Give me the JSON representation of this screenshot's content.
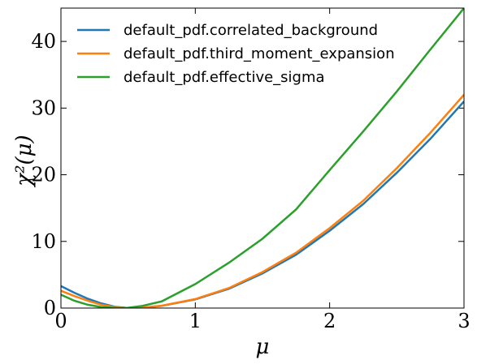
{
  "chart_data": {
    "type": "line",
    "xlabel": "μ",
    "ylabel": "χ²(μ)",
    "x": [
      0,
      0.1,
      0.2,
      0.3,
      0.4,
      0.5,
      0.6,
      0.75,
      1,
      1.25,
      1.5,
      1.75,
      2,
      2.25,
      2.5,
      2.75,
      3
    ],
    "series": [
      {
        "name": "default_pdf.correlated_background",
        "color": "#1f77b4",
        "values": [
          3.3,
          2.3,
          1.4,
          0.7,
          0.2,
          0,
          0.05,
          0.33,
          1.3,
          2.9,
          5.2,
          8.0,
          11.6,
          15.6,
          20.3,
          25.4,
          31
        ]
      },
      {
        "name": "default_pdf.third_moment_expansion",
        "color": "#ff7f0e",
        "values": [
          2.6,
          1.8,
          1.1,
          0.5,
          0.15,
          0,
          0.05,
          0.35,
          1.35,
          3.0,
          5.4,
          8.3,
          12.0,
          16.1,
          21.0,
          26.3,
          32
        ]
      },
      {
        "name": "default_pdf.effective_sigma",
        "color": "#2ca02c",
        "values": [
          2.0,
          1.1,
          0.5,
          0.15,
          0.03,
          0.05,
          0.3,
          1.0,
          3.6,
          6.8,
          10.4,
          14.8,
          20.7,
          26.5,
          32.5,
          38.8,
          45
        ]
      }
    ],
    "xlim": [
      0,
      3
    ],
    "ylim": [
      0,
      45
    ],
    "xticks": [
      0,
      1,
      2,
      3
    ],
    "yticks": [
      0,
      10,
      20,
      30,
      40
    ],
    "legend": "upper left"
  }
}
